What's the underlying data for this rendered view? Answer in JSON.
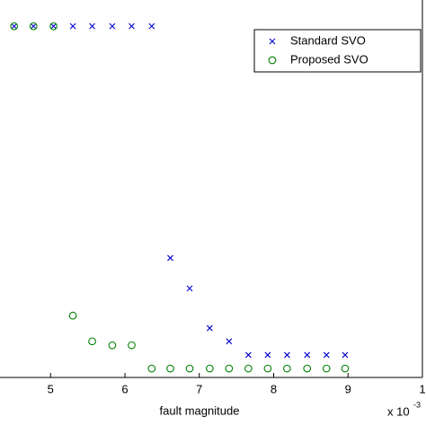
{
  "chart_data": {
    "type": "scatter",
    "x_label": "fault magnitude",
    "x_multiplier": "x 10",
    "x_multiplier_exp": "-3",
    "xlim": [
      4.32,
      10
    ],
    "xticks": [
      5,
      6,
      7,
      8,
      9,
      {
        "value": 10,
        "label": "1"
      }
    ],
    "ylim": [
      0,
      1
    ],
    "legend": "upper right",
    "series": [
      {
        "name": "Standard SVO",
        "color": "#0000cc",
        "marker": "x",
        "x": [
          4.51,
          4.77,
          5.04,
          5.3,
          5.56,
          5.83,
          6.09,
          6.36,
          6.61,
          6.87,
          7.14,
          7.4,
          7.66,
          7.92,
          8.18,
          8.45,
          8.71,
          8.96
        ],
        "values": [
          0.982,
          0.982,
          0.982,
          0.982,
          0.982,
          0.982,
          0.982,
          0.982,
          0.334,
          0.249,
          0.138,
          0.101,
          0.063,
          0.063,
          0.063,
          0.063,
          0.063,
          0.063
        ]
      },
      {
        "name": "Proposed SVO",
        "color": "#008000",
        "marker": "o",
        "x": [
          4.51,
          4.77,
          5.04,
          5.3,
          5.56,
          5.83,
          6.09,
          6.36,
          6.61,
          6.87,
          7.14,
          7.4,
          7.66,
          7.92,
          8.18,
          8.45,
          8.71,
          8.96
        ],
        "values": [
          0.982,
          0.982,
          0.982,
          0.173,
          0.101,
          0.09,
          0.09,
          0.025,
          0.025,
          0.025,
          0.025,
          0.025,
          0.025,
          0.025,
          0.025,
          0.025,
          0.025,
          0.025
        ]
      }
    ]
  }
}
